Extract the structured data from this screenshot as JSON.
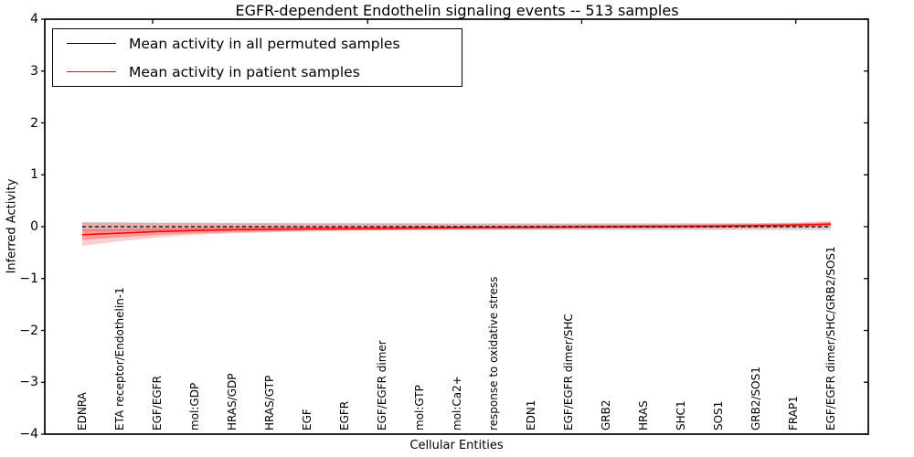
{
  "figure": {
    "title": "EGFR-dependent Endothelin signaling events -- 513 samples",
    "xlabel": "Cellular Entities",
    "ylabel": "Inferred Activity"
  },
  "legend": {
    "entries": [
      {
        "label": "Mean activity in all permuted samples",
        "color": "#000000"
      },
      {
        "label": "Mean activity in patient samples",
        "color": "#ff0000"
      }
    ]
  },
  "colors": {
    "axis": "#000000",
    "permuted_line": "#000000",
    "patient_line": "#ff0000",
    "permuted_band": "rgba(130,130,130,0.30)",
    "patient_band_outer": "rgba(255,45,45,0.24)",
    "patient_band_inner": "rgba(255,0,0,0.26)"
  },
  "chart_data": {
    "type": "line",
    "title": "EGFR-dependent Endothelin signaling events -- 513 samples",
    "xlabel": "Cellular Entities",
    "ylabel": "Inferred Activity",
    "ylim": [
      -4,
      4
    ],
    "yticks": [
      4,
      3,
      2,
      1,
      0,
      -1,
      -2,
      -3,
      -4
    ],
    "grid": false,
    "legend_position": "upper left",
    "categories": [
      "EDNRA",
      "ETA receptor/Endothelin-1",
      "EGF/EGFR",
      "mol:GDP",
      "HRAS/GDP",
      "HRAS/GTP",
      "EGF",
      "EGFR",
      "EGF/EGFR dimer",
      "mol:GTP",
      "mol:Ca2+",
      "response to oxidative stress",
      "EDN1",
      "EGF/EGFR dimer/SHC",
      "GRB2",
      "HRAS",
      "SHC1",
      "SOS1",
      "GRB2/SOS1",
      "FRAP1",
      "EGF/EGFR dimer/SHC/GRB2/SOS1"
    ],
    "series": [
      {
        "name": "Mean activity in all permuted samples",
        "color": "#000000",
        "style": "dashed",
        "values": [
          0,
          0,
          0,
          0,
          0,
          0,
          0,
          0,
          0,
          0,
          0,
          0,
          0,
          0,
          0,
          0,
          0,
          0,
          0,
          0,
          0
        ]
      },
      {
        "name": "Mean activity in patient samples",
        "color": "#ff0000",
        "style": "solid",
        "values": [
          -0.155,
          -0.125,
          -0.095,
          -0.075,
          -0.06,
          -0.05,
          -0.042,
          -0.036,
          -0.03,
          -0.024,
          -0.018,
          -0.014,
          -0.01,
          -0.006,
          -0.002,
          0.002,
          0.006,
          0.012,
          0.02,
          0.03,
          0.05
        ]
      }
    ],
    "bands": [
      {
        "name": "permuted-sample-range",
        "fill": "rgba(130,130,130,0.30)",
        "hi": [
          0.09,
          0.085,
          0.08,
          0.08,
          0.075,
          0.075,
          0.07,
          0.07,
          0.07,
          0.07,
          0.065,
          0.065,
          0.065,
          0.065,
          0.065,
          0.065,
          0.065,
          0.065,
          0.065,
          0.065,
          0.065
        ],
        "lo": [
          -0.09,
          -0.085,
          -0.08,
          -0.08,
          -0.075,
          -0.075,
          -0.07,
          -0.07,
          -0.07,
          -0.07,
          -0.065,
          -0.065,
          -0.065,
          -0.065,
          -0.065,
          -0.065,
          -0.065,
          -0.065,
          -0.065,
          -0.065,
          -0.065
        ]
      },
      {
        "name": "patient-sample-range-outer",
        "fill": "rgba(255,45,45,0.24)",
        "hi": [
          0.08,
          0.075,
          0.07,
          0.07,
          0.065,
          0.065,
          0.06,
          0.06,
          0.055,
          0.055,
          0.05,
          0.05,
          0.05,
          0.05,
          0.05,
          0.05,
          0.055,
          0.06,
          0.065,
          0.08,
          0.11
        ],
        "lo": [
          -0.37,
          -0.28,
          -0.21,
          -0.16,
          -0.13,
          -0.11,
          -0.095,
          -0.085,
          -0.075,
          -0.065,
          -0.06,
          -0.055,
          -0.05,
          -0.05,
          -0.045,
          -0.045,
          -0.04,
          -0.04,
          -0.035,
          -0.03,
          -0.02
        ]
      },
      {
        "name": "patient-sample-range-inner",
        "fill": "rgba(255,0,0,0.26)",
        "hi": [
          -0.055,
          -0.045,
          -0.03,
          -0.02,
          -0.01,
          -0.005,
          -0.002,
          0.002,
          0.005,
          0.009,
          0.012,
          0.016,
          0.02,
          0.024,
          0.028,
          0.032,
          0.036,
          0.042,
          0.05,
          0.062,
          0.085
        ],
        "lo": [
          -0.255,
          -0.205,
          -0.16,
          -0.13,
          -0.11,
          -0.095,
          -0.082,
          -0.074,
          -0.065,
          -0.057,
          -0.048,
          -0.044,
          -0.04,
          -0.036,
          -0.032,
          -0.028,
          -0.024,
          -0.018,
          -0.01,
          -0.002,
          0.015
        ]
      }
    ]
  }
}
